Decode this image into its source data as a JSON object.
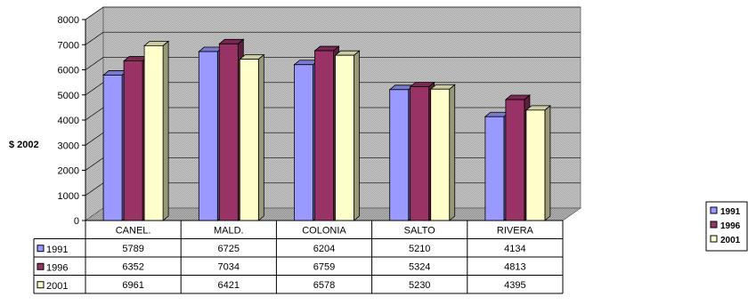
{
  "chart_data": {
    "type": "bar",
    "categories": [
      "CANEL.",
      "MALD.",
      "COLONIA",
      "SALTO",
      "RIVERA"
    ],
    "ylabel": "$ 2002",
    "ylim": [
      0,
      8000
    ],
    "yticks": [
      "0",
      "1000",
      "2000",
      "3000",
      "4000",
      "5000",
      "6000",
      "7000",
      "8000"
    ],
    "grid": true,
    "legend_position": "right",
    "data_table": true,
    "series": [
      {
        "name": "1991",
        "color": "#9999FF",
        "values": [
          5789,
          6725,
          6204,
          5210,
          4134
        ]
      },
      {
        "name": "1996",
        "color": "#993366",
        "values": [
          6352,
          7034,
          6759,
          5324,
          4813
        ]
      },
      {
        "name": "2001",
        "color": "#FFFFCC",
        "values": [
          6961,
          6421,
          6578,
          5230,
          4395
        ]
      }
    ]
  }
}
